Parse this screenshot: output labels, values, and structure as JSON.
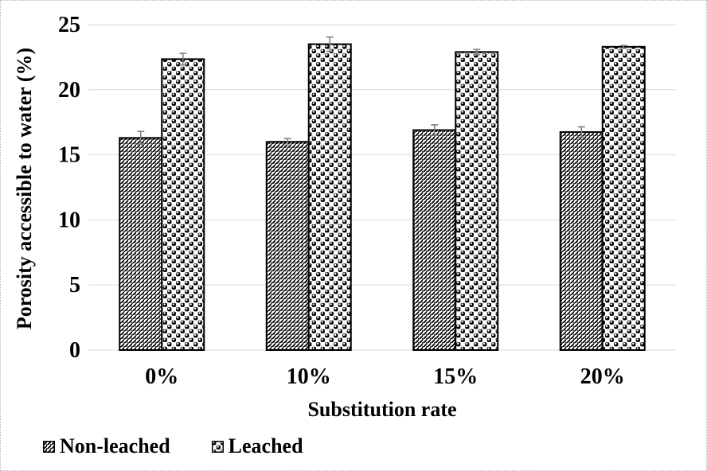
{
  "chart_data": {
    "type": "bar",
    "title": "",
    "categories": [
      "0%",
      "10%",
      "15%",
      "20%"
    ],
    "series": [
      {
        "name": "Non-leached",
        "pattern": "diagonal-hatch",
        "values": [
          16.3,
          16.0,
          16.9,
          16.75
        ],
        "errors": [
          0.5,
          0.25,
          0.4,
          0.4
        ]
      },
      {
        "name": "Leached",
        "pattern": "sphere-checker",
        "values": [
          22.35,
          23.5,
          22.9,
          23.3
        ],
        "errors": [
          0.45,
          0.55,
          0.2,
          0.1
        ]
      }
    ],
    "xlabel": "Substitution rate",
    "ylabel": "Porosity accessible to water (%)",
    "ylim": [
      0,
      25
    ],
    "ytick_step": 5,
    "yticks": [
      "0",
      "5",
      "10",
      "15",
      "20",
      "25"
    ],
    "grid": true,
    "legend_position": "bottom-left",
    "error_bars_visible": true
  },
  "colors": {
    "bar_outline": "#000000",
    "pattern_ink": "#000000",
    "grid": "#d9d9d9",
    "error_bar": "#7f7f7f",
    "frame_border": "#b5b5b5",
    "text": "#000000",
    "background": "#ffffff"
  }
}
